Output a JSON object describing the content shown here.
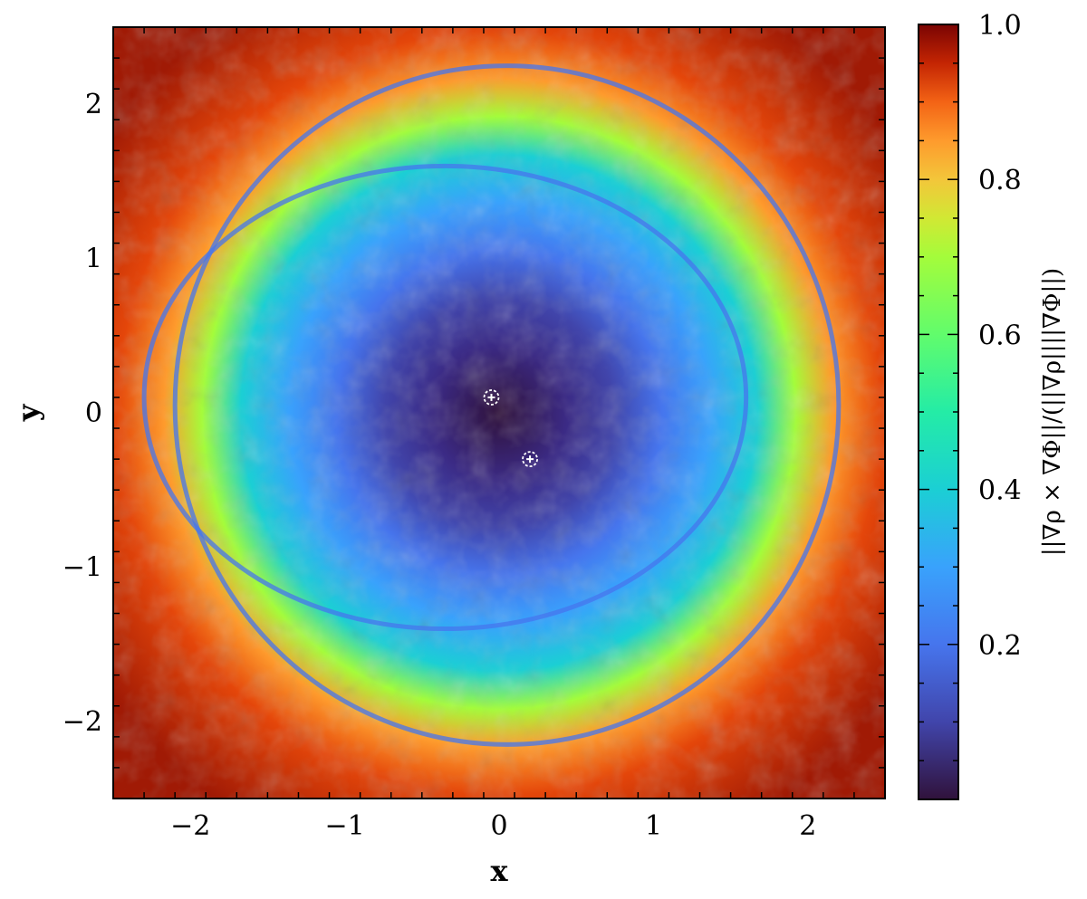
{
  "chart_data": {
    "type": "heatmap",
    "title": "",
    "xlabel": "x",
    "ylabel": "y",
    "xlim": [
      -2.5,
      2.5
    ],
    "ylim": [
      -2.5,
      2.5
    ],
    "xticks": [
      -2,
      -1,
      0,
      1,
      2
    ],
    "yticks": [
      -2,
      -1,
      0,
      1,
      2
    ],
    "xtick_labels": [
      "−2",
      "−1",
      "0",
      "1",
      "2"
    ],
    "ytick_labels": [
      "−2",
      "−1",
      "0",
      "1",
      "2"
    ],
    "grid": false,
    "colormap": "turbo",
    "colorbar": {
      "label": "||∇ρ × ∇Φ||/(||∇ρ||||∇Φ||)",
      "range": [
        0,
        1.0
      ],
      "ticks": [
        0.2,
        0.4,
        0.6,
        0.8,
        1.0
      ],
      "tick_labels": [
        "0.2",
        "0.4",
        "0.6",
        "0.8",
        "1.0"
      ]
    },
    "description_values": {
      "outer_region_value": 0.9,
      "shell_ring_value": 0.2,
      "inner_cavity_value": 0.05
    },
    "markers": [
      {
        "x": -0.05,
        "y": 0.1
      },
      {
        "x": 0.2,
        "y": -0.3
      }
    ]
  }
}
